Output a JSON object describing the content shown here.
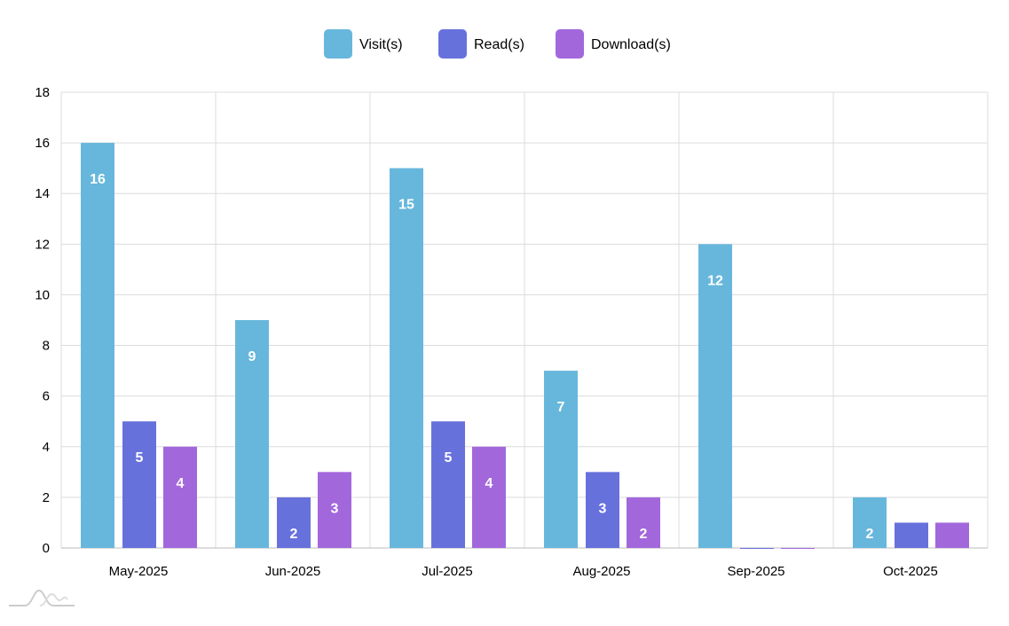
{
  "chart_data": {
    "type": "bar",
    "title": "",
    "xlabel": "",
    "ylabel": "",
    "categories": [
      "May-2025",
      "Jun-2025",
      "Jul-2025",
      "Aug-2025",
      "Sep-2025",
      "Oct-2025"
    ],
    "series": [
      {
        "name": "Visit(s)",
        "color": "#67b7dc",
        "values": [
          16,
          9,
          15,
          7,
          12,
          2
        ]
      },
      {
        "name": "Read(s)",
        "color": "#6771dc",
        "values": [
          5,
          2,
          5,
          3,
          0,
          1
        ]
      },
      {
        "name": "Download(s)",
        "color": "#a367dc",
        "values": [
          4,
          3,
          4,
          2,
          0,
          1
        ]
      }
    ],
    "ylim": [
      0,
      18
    ],
    "yticks": [
      0,
      2,
      4,
      6,
      8,
      10,
      12,
      14,
      16,
      18
    ],
    "grid": true,
    "legend_position": "top-center",
    "data_labels": "inside-top"
  },
  "logo": "amcharts-logo-icon"
}
